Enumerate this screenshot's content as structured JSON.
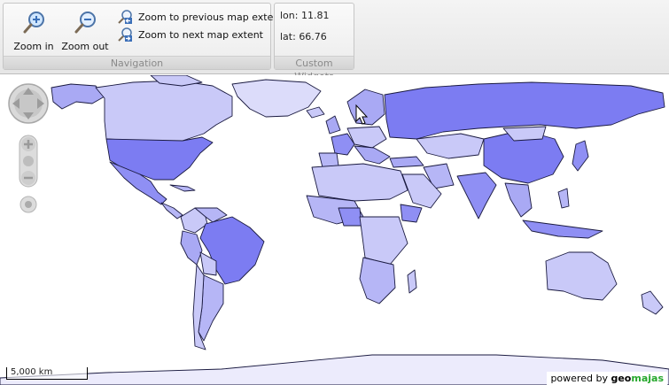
{
  "toolbar": {
    "navigation": {
      "title": "Navigation",
      "zoom_in_label": "Zoom in",
      "zoom_out_label": "Zoom out",
      "zoom_prev_label": "Zoom to previous map extent",
      "zoom_next_label": "Zoom to next map extent"
    },
    "custom": {
      "title": "Custom Widgets",
      "lon_text": "lon: 11.81",
      "lat_text": "lat: 66.76"
    }
  },
  "map": {
    "scale_label": "5,000 km",
    "powered_prefix": "powered by",
    "brand_a": "geo",
    "brand_b": "majas"
  }
}
